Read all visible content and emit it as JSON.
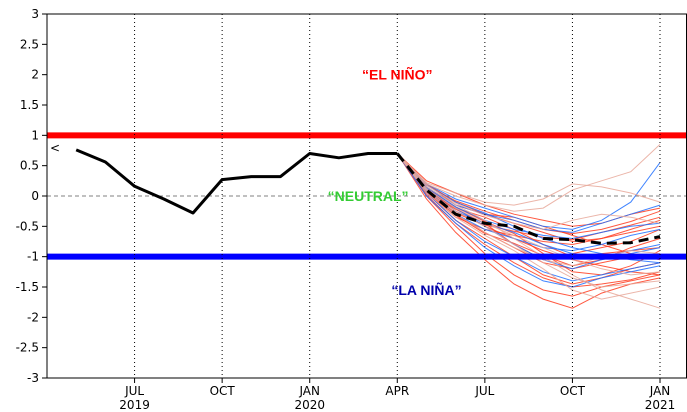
{
  "chart_data": {
    "type": "line",
    "title": "",
    "xlabel": "",
    "ylabel": "",
    "ylim": [
      -3,
      3
    ],
    "yticks": [
      -3,
      -2.5,
      -2,
      -1.5,
      -1,
      -0.5,
      0,
      0.5,
      1,
      1.5,
      2,
      2.5,
      3
    ],
    "ytick_labels": [
      "-3",
      "-2.5",
      "-2",
      "-1.5",
      "-1",
      "-0.5",
      "0",
      "0.5",
      "1",
      "1.5",
      "2",
      "2.5",
      "3"
    ],
    "x_range_months": [
      "2019-04",
      "2021-01"
    ],
    "xticks": [
      {
        "month": "2019-07",
        "label": "JUL",
        "year": "2019"
      },
      {
        "month": "2019-10",
        "label": "OCT",
        "year": ""
      },
      {
        "month": "2020-01",
        "label": "JAN",
        "year": "2020"
      },
      {
        "month": "2020-04",
        "label": "APR",
        "year": ""
      },
      {
        "month": "2020-07",
        "label": "JUL",
        "year": ""
      },
      {
        "month": "2020-10",
        "label": "OCT",
        "year": ""
      },
      {
        "month": "2021-01",
        "label": "JAN",
        "year": "2021"
      }
    ],
    "thresholds": [
      {
        "value": 1,
        "color": "#ff0000"
      },
      {
        "value": -1,
        "color": "#0000ff"
      }
    ],
    "zero_line": {
      "value": 0,
      "style": "dashed",
      "color": "#808080"
    },
    "regime_labels": [
      {
        "text": "“EL NIÑO”",
        "color": "#ff0000",
        "month": "2020-04",
        "y": 2.0
      },
      {
        "text": "“NEUTRAL”",
        "color": "#33cc33",
        "month": "2020-03",
        "y": 0.0
      },
      {
        "text": "“LA NIÑA”",
        "color": "#0000aa",
        "month": "2020-05",
        "y": -1.55
      }
    ],
    "start_marker": "<",
    "series": [
      {
        "style": "observed",
        "color": "#000000",
        "points": [
          [
            "2019-05",
            0.76
          ],
          [
            "2019-06",
            0.56
          ],
          [
            "2019-07",
            0.16
          ],
          [
            "2019-08",
            -0.05
          ],
          [
            "2019-09",
            -0.28
          ],
          [
            "2019-10",
            0.27
          ],
          [
            "2019-11",
            0.32
          ],
          [
            "2019-12",
            0.32
          ],
          [
            "2020-01",
            0.7
          ],
          [
            "2020-02",
            0.63
          ],
          [
            "2020-03",
            0.7
          ],
          [
            "2020-04",
            0.7
          ]
        ]
      },
      {
        "style": "ensemble-mean",
        "color": "#000000",
        "points": [
          [
            "2020-04",
            0.7
          ],
          [
            "2020-05",
            0.1
          ],
          [
            "2020-06",
            -0.3
          ],
          [
            "2020-07",
            -0.45
          ],
          [
            "2020-08",
            -0.5
          ],
          [
            "2020-09",
            -0.7
          ],
          [
            "2020-10",
            -0.72
          ],
          [
            "2020-11",
            -0.78
          ],
          [
            "2020-12",
            -0.77
          ],
          [
            "2021-01",
            -0.67
          ]
        ]
      }
    ],
    "ensemble_members": [
      {
        "color": "#ff3b1f",
        "values": [
          0.7,
          0.05,
          -0.4,
          -0.7,
          -1.0,
          -1.3,
          -1.45,
          -1.35,
          -1.2,
          -1.1
        ]
      },
      {
        "color": "#ff3b1f",
        "values": [
          0.7,
          0.15,
          -0.2,
          -0.35,
          -0.55,
          -0.8,
          -1.0,
          -0.95,
          -0.9,
          -0.85
        ]
      },
      {
        "color": "#ff3b1f",
        "values": [
          0.7,
          0.0,
          -0.5,
          -0.95,
          -1.3,
          -1.55,
          -1.65,
          -1.5,
          -1.4,
          -1.3
        ]
      },
      {
        "color": "#ff3b1f",
        "values": [
          0.7,
          0.2,
          -0.1,
          -0.3,
          -0.45,
          -0.6,
          -0.75,
          -0.7,
          -0.6,
          -0.5
        ]
      },
      {
        "color": "#ff3b1f",
        "values": [
          0.7,
          0.1,
          -0.3,
          -0.6,
          -0.85,
          -1.1,
          -1.2,
          -1.1,
          -1.0,
          -0.95
        ]
      },
      {
        "color": "#ff3b1f",
        "values": [
          0.7,
          0.25,
          0.05,
          -0.15,
          -0.3,
          -0.4,
          -0.5,
          -0.45,
          -0.3,
          -0.2
        ]
      },
      {
        "color": "#ff3b1f",
        "values": [
          0.7,
          -0.05,
          -0.6,
          -1.05,
          -1.45,
          -1.7,
          -1.85,
          -1.6,
          -1.45,
          -1.35
        ]
      },
      {
        "color": "#ff3b1f",
        "values": [
          0.7,
          0.15,
          -0.25,
          -0.5,
          -0.7,
          -0.9,
          -1.05,
          -1.15,
          -1.25,
          -1.3
        ]
      },
      {
        "color": "#ff3b1f",
        "values": [
          0.7,
          0.05,
          -0.35,
          -0.55,
          -0.65,
          -0.75,
          -0.8,
          -0.7,
          -0.55,
          -0.4
        ]
      },
      {
        "color": "#ff3b1f",
        "values": [
          0.7,
          0.12,
          -0.18,
          -0.42,
          -0.62,
          -0.95,
          -1.25,
          -1.3,
          -1.15,
          -0.9
        ]
      },
      {
        "color": "#ff3b1f",
        "values": [
          0.7,
          0.08,
          -0.28,
          -0.48,
          -0.58,
          -0.68,
          -0.72,
          -0.6,
          -0.48,
          -0.35
        ]
      },
      {
        "color": "#ff3b1f",
        "values": [
          0.7,
          0.18,
          -0.08,
          -0.25,
          -0.4,
          -0.55,
          -0.62,
          -0.55,
          -0.42,
          -0.25
        ]
      },
      {
        "color": "#ff3b1f",
        "values": [
          0.7,
          0.02,
          -0.45,
          -0.8,
          -1.1,
          -1.35,
          -1.5,
          -1.45,
          -1.38,
          -1.25
        ]
      },
      {
        "color": "#ff3b1f",
        "values": [
          0.7,
          0.1,
          -0.22,
          -0.45,
          -0.8,
          -1.05,
          -0.95,
          -0.85,
          -0.75,
          -0.55
        ]
      },
      {
        "color": "#ff3b1f",
        "values": [
          0.7,
          0.2,
          -0.15,
          -0.3,
          -0.35,
          -0.5,
          -0.65,
          -0.8,
          -0.95,
          -1.05
        ]
      },
      {
        "color": "#ff3b1f",
        "values": [
          0.7,
          0.06,
          -0.32,
          -0.62,
          -0.78,
          -0.98,
          -1.15,
          -1.05,
          -0.85,
          -0.7
        ]
      },
      {
        "color": "#1f6fff",
        "values": [
          0.7,
          0.1,
          -0.25,
          -0.45,
          -0.6,
          -0.8,
          -0.95,
          -1.0,
          -0.9,
          -0.8
        ]
      },
      {
        "color": "#1f6fff",
        "values": [
          0.7,
          0.15,
          -0.15,
          -0.3,
          -0.4,
          -0.55,
          -0.6,
          -0.45,
          -0.3,
          -0.15
        ]
      },
      {
        "color": "#1f6fff",
        "values": [
          0.7,
          0.05,
          -0.4,
          -0.75,
          -1.0,
          -1.25,
          -1.4,
          -1.3,
          -1.2,
          -1.1
        ]
      },
      {
        "color": "#1f6fff",
        "values": [
          0.7,
          0.2,
          -0.05,
          -0.2,
          -0.35,
          -0.5,
          -0.55,
          -0.4,
          -0.1,
          0.55
        ]
      },
      {
        "color": "#1f6fff",
        "values": [
          0.7,
          0.12,
          -0.2,
          -0.5,
          -0.8,
          -1.05,
          -1.2,
          -1.05,
          -0.95,
          -0.85
        ]
      },
      {
        "color": "#1f6fff",
        "values": [
          0.7,
          0.08,
          -0.3,
          -0.55,
          -0.7,
          -0.85,
          -0.9,
          -0.8,
          -0.65,
          -0.55
        ]
      },
      {
        "color": "#1f6fff",
        "values": [
          0.7,
          0.18,
          -0.1,
          -0.28,
          -0.5,
          -0.7,
          -0.85,
          -0.95,
          -1.05,
          -1.1
        ]
      },
      {
        "color": "#1f6fff",
        "values": [
          0.7,
          0.0,
          -0.45,
          -0.85,
          -1.15,
          -1.4,
          -1.5,
          -1.35,
          -1.25,
          -1.15
        ]
      },
      {
        "color": "#1f6fff",
        "values": [
          0.7,
          0.14,
          -0.18,
          -0.4,
          -0.55,
          -0.65,
          -0.7,
          -0.6,
          -0.5,
          -0.45
        ]
      },
      {
        "color": "#e8a89a",
        "values": [
          0.7,
          0.2,
          0.0,
          -0.15,
          -0.25,
          -0.2,
          0.1,
          0.25,
          0.4,
          0.85
        ]
      },
      {
        "color": "#e8a89a",
        "values": [
          0.7,
          0.15,
          -0.15,
          -0.4,
          -0.7,
          -1.0,
          -1.3,
          -1.55,
          -1.7,
          -1.85
        ]
      },
      {
        "color": "#e8a89a",
        "values": [
          0.7,
          0.1,
          -0.25,
          -0.5,
          -0.8,
          -1.1,
          -1.35,
          -1.5,
          -1.45,
          -1.4
        ]
      },
      {
        "color": "#e8a89a",
        "values": [
          0.7,
          0.22,
          0.05,
          -0.1,
          -0.15,
          -0.05,
          0.2,
          0.15,
          0.05,
          -0.1
        ]
      },
      {
        "color": "#e8a89a",
        "values": [
          0.7,
          0.05,
          -0.35,
          -0.65,
          -0.9,
          -1.2,
          -1.55,
          -1.7,
          -1.6,
          -1.5
        ]
      },
      {
        "color": "#e8a89a",
        "values": [
          0.7,
          0.18,
          -0.12,
          -0.32,
          -0.45,
          -0.55,
          -0.4,
          -0.3,
          -0.35,
          -0.45
        ]
      },
      {
        "color": "#e8a89a",
        "values": [
          0.7,
          0.12,
          -0.2,
          -0.45,
          -0.65,
          -0.85,
          -1.05,
          -1.2,
          -1.3,
          -1.25
        ]
      },
      {
        "color": "#e8a89a",
        "values": [
          0.7,
          0.08,
          -0.3,
          -0.6,
          -0.85,
          -1.05,
          -1.15,
          -1.0,
          -0.9,
          -0.95
        ]
      }
    ]
  }
}
